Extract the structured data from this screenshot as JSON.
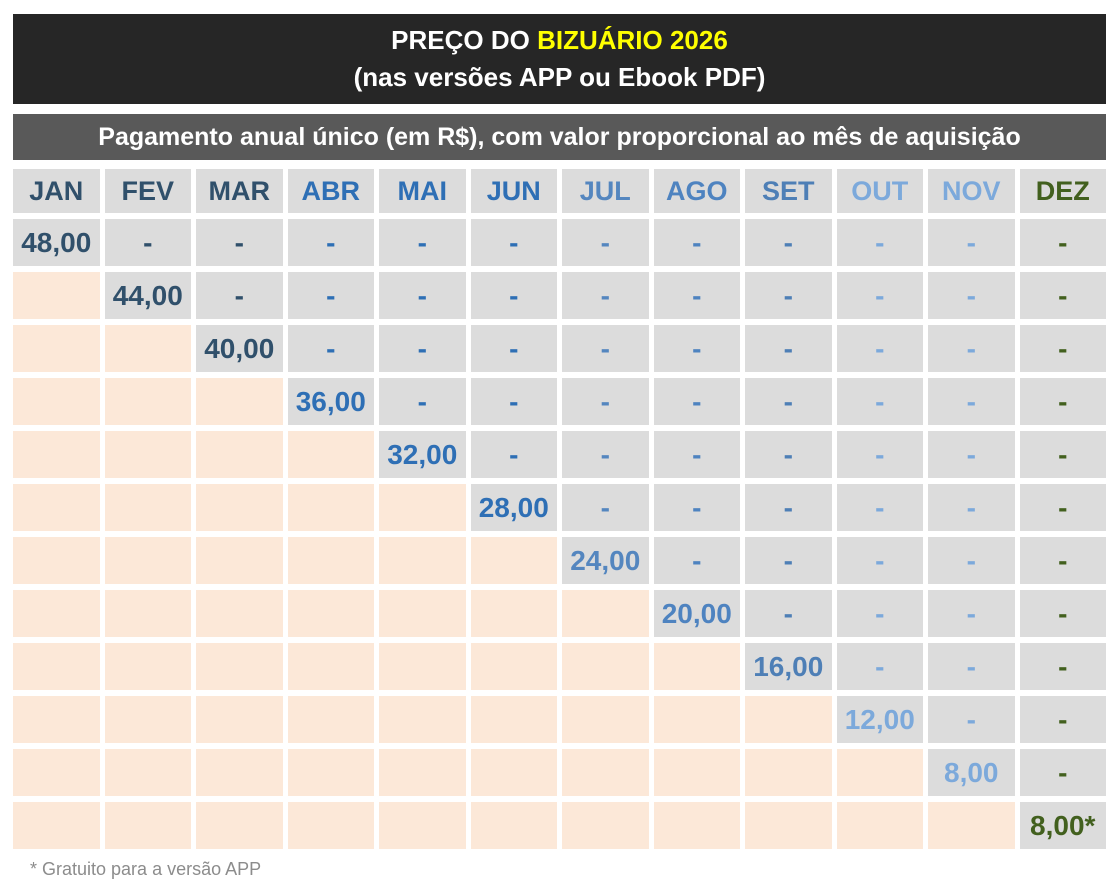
{
  "header": {
    "title_prefix": "PREÇO DO ",
    "title_highlight": "BIZUÁRIO 2026",
    "subtitle": "(nas versões APP ou Ebook PDF)",
    "bar_bg": "#262626",
    "title_color": "#FFFFFF",
    "highlight_color": "#FFFF00"
  },
  "banner": {
    "text": "Pagamento anual único (em R$), com valor proporcional ao mês de aquisição",
    "bg": "#595959",
    "text_color": "#FFFFFF"
  },
  "table": {
    "months": [
      {
        "label": "JAN",
        "color": "#30506B"
      },
      {
        "label": "FEV",
        "color": "#30506B"
      },
      {
        "label": "MAR",
        "color": "#30506B"
      },
      {
        "label": "ABR",
        "color": "#2E6FB5"
      },
      {
        "label": "MAI",
        "color": "#2E6FB5"
      },
      {
        "label": "JUN",
        "color": "#2E6FB5"
      },
      {
        "label": "JUL",
        "color": "#5486BF"
      },
      {
        "label": "AGO",
        "color": "#4E83C0"
      },
      {
        "label": "SET",
        "color": "#4E7FB6"
      },
      {
        "label": "OUT",
        "color": "#7CA9DB"
      },
      {
        "label": "NOV",
        "color": "#7CA9DB"
      },
      {
        "label": "DEZ",
        "color": "#42601E"
      }
    ],
    "prices": [
      "48,00",
      "44,00",
      "40,00",
      "36,00",
      "32,00",
      "28,00",
      "24,00",
      "20,00",
      "16,00",
      "12,00",
      "8,00",
      "8,00*"
    ],
    "dash": "-",
    "cell_bg": "#DCDCDC",
    "empty_bg": "#FCE8D8"
  },
  "footer": {
    "note": "* Gratuito para a versão APP",
    "color": "#8C8C8C"
  },
  "chart_data": {
    "type": "table",
    "title": "PREÇO DO BIZUÁRIO 2026 (nas versões APP ou Ebook PDF)",
    "subtitle": "Pagamento anual único (em R$), com valor proporcional ao mês de aquisição",
    "columns": [
      "JAN",
      "FEV",
      "MAR",
      "ABR",
      "MAI",
      "JUN",
      "JUL",
      "AGO",
      "SET",
      "OUT",
      "NOV",
      "DEZ"
    ],
    "diagonal_prices_reais": [
      48.0,
      44.0,
      40.0,
      36.0,
      32.0,
      28.0,
      24.0,
      20.0,
      16.0,
      12.0,
      8.0,
      8.0
    ],
    "cell_semantics": "Each row corresponds to the month of acquisition; the diagonal cell shows the proportional annual price in R$, cells after the acquisition month show '-', cells before it are blank (peach).",
    "annotations": [
      "* Gratuito para a versão APP (December price 8,00* is free for the APP version)"
    ]
  }
}
